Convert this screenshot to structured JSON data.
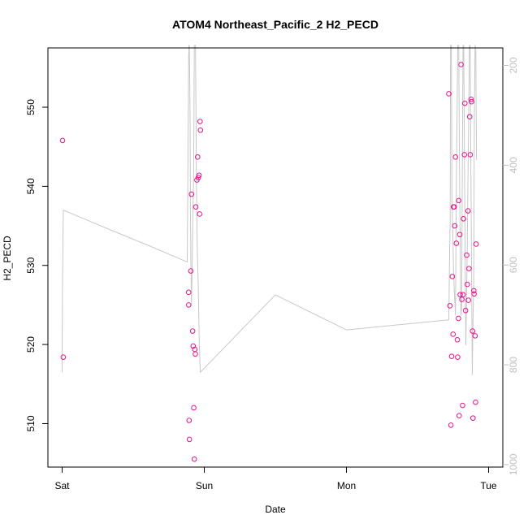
{
  "chart_data": {
    "type": "scatter",
    "title": "ATOM4 Northeast_Pacific_2 H2_PECD",
    "xlabel": "Date",
    "ylabel": "H2_PECD",
    "x_unit": "days since Sat 00:00",
    "xlim": [
      -0.1,
      3.1
    ],
    "ylim": [
      504.5,
      557.5
    ],
    "x_ticks": [
      {
        "label": "Sat",
        "value": 0
      },
      {
        "label": "Sun",
        "value": 1
      },
      {
        "label": "Mon",
        "value": 2
      },
      {
        "label": "Tue",
        "value": 3
      }
    ],
    "y_ticks": [
      510,
      520,
      530,
      540,
      550
    ],
    "y2_ticks": [
      200,
      400,
      600,
      800,
      1000
    ],
    "y2_range": [
      1005,
      165
    ],
    "colors": {
      "points": "#e8128b",
      "line": "#c8c8c8",
      "axis": "#000000",
      "right_axis": "#c0c0c0"
    },
    "series": [
      {
        "type": "scatter",
        "points": [
          [
            0.003,
            545.8
          ],
          [
            0.008,
            518.4
          ],
          [
            0.89,
            526.6
          ],
          [
            0.89,
            525.0
          ],
          [
            0.893,
            510.4
          ],
          [
            0.895,
            508.0
          ],
          [
            0.905,
            529.3
          ],
          [
            0.91,
            539.0
          ],
          [
            0.918,
            521.7
          ],
          [
            0.922,
            519.8
          ],
          [
            0.926,
            512.0
          ],
          [
            0.93,
            505.5
          ],
          [
            0.933,
            519.4
          ],
          [
            0.937,
            518.8
          ],
          [
            0.94,
            537.4
          ],
          [
            0.948,
            540.8
          ],
          [
            0.953,
            543.7
          ],
          [
            0.958,
            541.1
          ],
          [
            0.963,
            541.4
          ],
          [
            0.967,
            536.5
          ],
          [
            0.97,
            548.2
          ],
          [
            0.973,
            547.1
          ],
          [
            2.72,
            551.7
          ],
          [
            2.728,
            524.9
          ],
          [
            2.735,
            509.8
          ],
          [
            2.74,
            518.5
          ],
          [
            2.745,
            528.6
          ],
          [
            2.75,
            521.3
          ],
          [
            2.753,
            537.4
          ],
          [
            2.758,
            537.4
          ],
          [
            2.762,
            535.0
          ],
          [
            2.767,
            543.7
          ],
          [
            2.773,
            532.8
          ],
          [
            2.78,
            520.6
          ],
          [
            2.782,
            518.4
          ],
          [
            2.788,
            523.3
          ],
          [
            2.79,
            538.2
          ],
          [
            2.793,
            511.0
          ],
          [
            2.797,
            533.9
          ],
          [
            2.8,
            526.3
          ],
          [
            2.806,
            555.4
          ],
          [
            2.812,
            525.7
          ],
          [
            2.817,
            512.3
          ],
          [
            2.82,
            526.3
          ],
          [
            2.823,
            535.9
          ],
          [
            2.83,
            544.0
          ],
          [
            2.833,
            550.5
          ],
          [
            2.838,
            524.3
          ],
          [
            2.846,
            531.3
          ],
          [
            2.85,
            527.6
          ],
          [
            2.855,
            536.9
          ],
          [
            2.858,
            525.6
          ],
          [
            2.862,
            529.6
          ],
          [
            2.867,
            548.8
          ],
          [
            2.871,
            544.0
          ],
          [
            2.877,
            551.0
          ],
          [
            2.88,
            550.7
          ],
          [
            2.887,
            521.7
          ],
          [
            2.89,
            510.7
          ],
          [
            2.896,
            526.8
          ],
          [
            2.898,
            526.4
          ],
          [
            2.905,
            521.1
          ],
          [
            2.908,
            512.7
          ],
          [
            2.912,
            532.7
          ]
        ]
      },
      {
        "type": "line",
        "axis": "right",
        "points": [
          [
            0.0,
            815
          ],
          [
            0.002,
            655
          ],
          [
            0.008,
            490
          ],
          [
            0.05,
            495
          ],
          [
            0.3,
            525
          ],
          [
            0.6,
            560
          ],
          [
            0.88,
            594
          ],
          [
            0.885,
            395
          ],
          [
            0.888,
            280
          ],
          [
            0.89,
            185
          ],
          [
            0.892,
            160
          ],
          [
            0.895,
            160
          ],
          [
            0.9,
            300
          ],
          [
            0.903,
            520
          ],
          [
            0.906,
            600
          ],
          [
            0.91,
            680
          ],
          [
            0.915,
            590
          ],
          [
            0.92,
            490
          ],
          [
            0.925,
            420
          ],
          [
            0.93,
            160
          ],
          [
            0.938,
            160
          ],
          [
            0.945,
            440
          ],
          [
            0.95,
            560
          ],
          [
            0.958,
            650
          ],
          [
            0.965,
            760
          ],
          [
            0.972,
            815
          ],
          [
            1.5,
            660
          ],
          [
            2.0,
            730
          ],
          [
            2.72,
            710
          ],
          [
            2.725,
            590
          ],
          [
            2.73,
            500
          ],
          [
            2.732,
            160
          ],
          [
            2.738,
            160
          ],
          [
            2.742,
            470
          ],
          [
            2.75,
            560
          ],
          [
            2.753,
            610
          ],
          [
            2.76,
            660
          ],
          [
            2.767,
            700
          ],
          [
            2.773,
            440
          ],
          [
            2.778,
            300
          ],
          [
            2.783,
            160
          ],
          [
            2.79,
            160
          ],
          [
            2.795,
            400
          ],
          [
            2.8,
            560
          ],
          [
            2.805,
            700
          ],
          [
            2.81,
            690
          ],
          [
            2.815,
            420
          ],
          [
            2.82,
            160
          ],
          [
            2.825,
            160
          ],
          [
            2.83,
            380
          ],
          [
            2.835,
            600
          ],
          [
            2.84,
            760
          ],
          [
            2.845,
            660
          ],
          [
            2.85,
            560
          ],
          [
            2.855,
            420
          ],
          [
            2.86,
            300
          ],
          [
            2.865,
            160
          ],
          [
            2.87,
            160
          ],
          [
            2.875,
            400
          ],
          [
            2.88,
            600
          ],
          [
            2.885,
            820
          ],
          [
            2.89,
            720
          ],
          [
            2.895,
            640
          ],
          [
            2.9,
            300
          ],
          [
            2.905,
            160
          ],
          [
            2.91,
            170
          ],
          [
            2.915,
            390
          ]
        ],
        "break_after_index": 24
      }
    ]
  }
}
